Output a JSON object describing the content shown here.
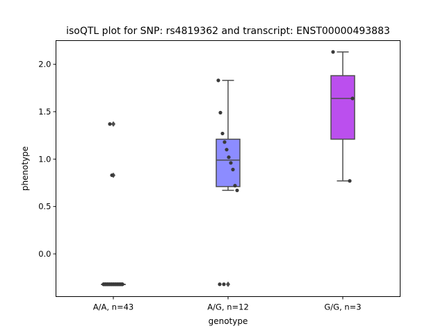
{
  "chart_data": {
    "type": "box",
    "title": "isoQTL plot for SNP: rs4819362 and transcript: ENST00000493883",
    "xlabel": "genotype",
    "ylabel": "phenotype",
    "categories": [
      "A/A, n=43",
      "A/G, n=12",
      "G/G, n=3"
    ],
    "ylim": [
      -0.45,
      2.25
    ],
    "yticks": [
      0.0,
      0.5,
      1.0,
      1.5,
      2.0
    ],
    "ytick_labels": [
      "0.0",
      "0.5",
      "1.0",
      "1.5",
      "2.0"
    ],
    "boxes": [
      {
        "category": "A/A, n=43",
        "color": "#3a3a8c",
        "q1": -0.32,
        "median": -0.32,
        "q3": -0.32,
        "whisker_low": -0.32,
        "whisker_high": -0.32,
        "outliers": [
          1.37,
          0.83
        ]
      },
      {
        "category": "A/G, n=12",
        "color": "#8c8cff",
        "q1": 0.71,
        "median": 0.99,
        "q3": 1.21,
        "whisker_low": 0.67,
        "whisker_high": 1.83,
        "outliers": [
          -0.32
        ]
      },
      {
        "category": "G/G, n=3",
        "color": "#bb4fee",
        "q1": 1.21,
        "median": 1.64,
        "q3": 1.88,
        "whisker_low": 0.77,
        "whisker_high": 2.13,
        "outliers": []
      }
    ],
    "points": [
      {
        "category": 0,
        "values": [
          -0.32,
          -0.32,
          -0.32,
          -0.32,
          -0.32,
          -0.32,
          -0.32,
          -0.32,
          -0.32,
          -0.32,
          -0.32,
          -0.32,
          -0.32,
          -0.32,
          -0.32,
          -0.32,
          -0.32,
          -0.32,
          -0.32,
          -0.32,
          -0.32,
          -0.32,
          -0.32,
          -0.32,
          -0.32,
          -0.32,
          -0.32,
          -0.32,
          -0.32,
          -0.32,
          -0.32,
          -0.32,
          -0.32,
          -0.32,
          -0.32,
          -0.32,
          -0.32,
          -0.32,
          -0.32,
          -0.32,
          -0.32,
          1.37,
          0.83
        ]
      },
      {
        "category": 1,
        "values": [
          1.83,
          1.49,
          1.27,
          1.18,
          1.1,
          1.02,
          0.96,
          0.89,
          0.72,
          0.67,
          -0.32,
          -0.32
        ]
      },
      {
        "category": 2,
        "values": [
          2.13,
          1.64,
          0.77
        ]
      }
    ],
    "grid": false,
    "legend": "none"
  }
}
